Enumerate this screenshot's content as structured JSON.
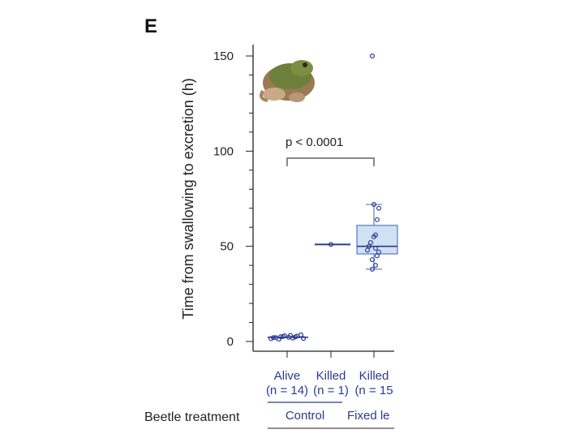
{
  "panel_label": "E",
  "colors": {
    "axis": "#222222",
    "points": "#2b3a8f",
    "box_fill": "#cfe1f2",
    "box_stroke": "#5b78c0",
    "bracket": "#888888"
  },
  "icon": "frog-icon",
  "chart_data": {
    "type": "scatter",
    "ylabel": "Time from swallowing to excretion (h)",
    "xlabel": "Beetle treatment",
    "ylim": [
      0,
      150
    ],
    "yticks": [
      0,
      50,
      100,
      150
    ],
    "categories": [
      {
        "line1": "Alive",
        "line2": "(n = 14)"
      },
      {
        "line1": "Killed",
        "line2": "(n = 1)"
      },
      {
        "line1": "Killed",
        "line2": "(n = 15"
      }
    ],
    "groups": [
      {
        "label": "Control"
      },
      {
        "label": "Fixed le"
      }
    ],
    "series": [
      {
        "values": [
          1.5,
          2.0,
          2.5,
          3.0,
          2.2,
          1.8,
          2.8,
          3.5,
          2.0,
          1.2,
          2.6,
          3.2,
          2.4,
          1.6
        ]
      },
      {
        "values": [
          51
        ]
      },
      {
        "values": [
          150,
          72,
          70,
          64,
          56,
          55,
          52,
          50,
          49,
          48,
          47,
          45,
          43,
          40,
          38
        ],
        "box": {
          "q1": 46,
          "median": 50,
          "q3": 61,
          "whisker_low": 38,
          "whisker_high": 72
        }
      }
    ],
    "annotation": {
      "text": "p < 0.0001",
      "from_category": 0,
      "to_category": 2
    }
  }
}
